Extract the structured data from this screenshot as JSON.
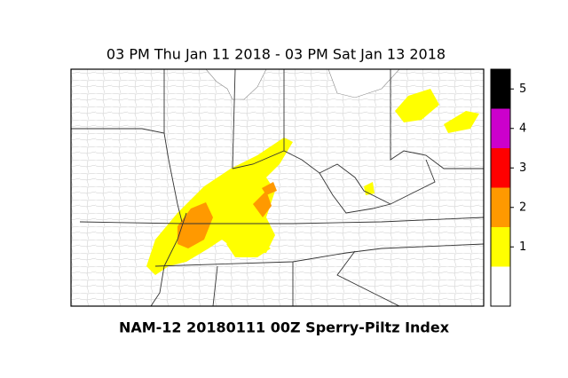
{
  "title": "03 PM Thu Jan 11 2018 - 03 PM Sat Jan 13 2018",
  "caption": "NAM-12 20180111 00Z  Sperry-Piltz Index",
  "colorbar": {
    "labels": [
      null,
      1,
      2,
      3,
      4,
      5
    ],
    "colors": [
      "#ffffff",
      "#ffff00",
      "#ff9900",
      "#ff0000",
      "#cc00cc",
      "#000000"
    ]
  }
}
